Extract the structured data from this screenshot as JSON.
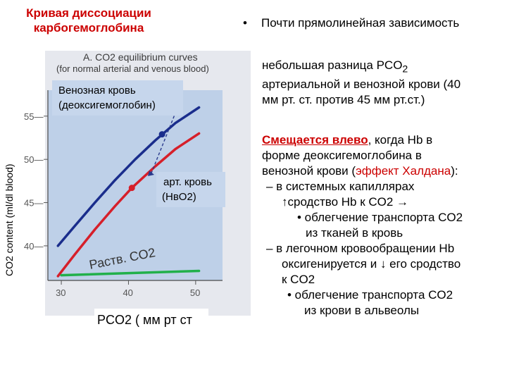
{
  "slide": {
    "title_line1": "Кривая диссоциации",
    "title_line2": "карбогемоглобина",
    "bullet1": "Почти прямолинейная зависимость",
    "para2_line1": "небольшая разница PCO",
    "para2_sub": "2",
    "para2_line2": "артериальной и венозной крови (40",
    "para2_line3": "мм рт. ст. против 45 мм рт.ст.)",
    "shift_strong": "Смещается влево",
    "shift_rest": ", когда Hb в",
    "line_form": "форме деоксигемоглобина в",
    "line_venous_a": "венозной крови (",
    "line_venous_effect": "эффект Халдана",
    "line_venous_b": "):",
    "dash1_a": "– в системных капиллярах",
    "dash1_b": "↑сродство Hb к CO2 →",
    "dash1_sub_a": "• облегчение транспорта CO2",
    "dash1_sub_b": "из тканей в кровь",
    "dash2_a": "– в легочном кровообращении Hb",
    "dash2_b": "оксигенируется  и ↓ его сродство",
    "dash2_c": "к CO2",
    "dash2_sub_a": "• облегчение транспорта CO2",
    "dash2_sub_b": "из крови в альвеолы",
    "bullet_symbol": "•"
  },
  "chart_data": {
    "type": "line",
    "title_line1": "A. CO2 equilibrium curves",
    "title_line2": "(for normal arterial and venous blood)",
    "xlabel": "PCO2 ( мм рт ст",
    "ylabel": "CO2 content (ml/dl blood)",
    "xlim": [
      28,
      54
    ],
    "ylim": [
      36,
      58
    ],
    "x_ticks": [
      30,
      40,
      50
    ],
    "y_ticks": [
      40,
      45,
      50,
      55
    ],
    "annotations": {
      "venous": "Венозная кровь (деоксигемоглобин)",
      "venous_line1": "Венозная кровь",
      "venous_line2": "(деоксигемоглобин)",
      "arterial_line1": "арт. кровь",
      "arterial_line2": "(HвO2)",
      "dissolved": "Раств. CO2"
    },
    "series": [
      {
        "color": "#1a2d8c",
        "x": [
          29.5,
          32,
          35,
          38,
          41,
          44,
          47,
          50.5
        ],
        "y": [
          40.0,
          42.3,
          45.0,
          47.6,
          50.0,
          52.2,
          54.2,
          56.0
        ]
      },
      {
        "color": "#d61f2a",
        "x": [
          29.5,
          32,
          35,
          38,
          40.5,
          44,
          47,
          50.5
        ],
        "y": [
          36.5,
          39.0,
          41.9,
          44.6,
          46.7,
          49.2,
          51.2,
          53.0
        ]
      },
      {
        "color": "#21b04a",
        "x": [
          30,
          50.5
        ],
        "y": [
          36.6,
          37.1
        ]
      }
    ],
    "points": [
      {
        "label": "arterial",
        "x": 40.5,
        "y": 46.7,
        "color": "#d61f2a"
      },
      {
        "label": "venous",
        "x": 45,
        "y": 52.9,
        "color": "#1a2d8c"
      }
    ]
  }
}
